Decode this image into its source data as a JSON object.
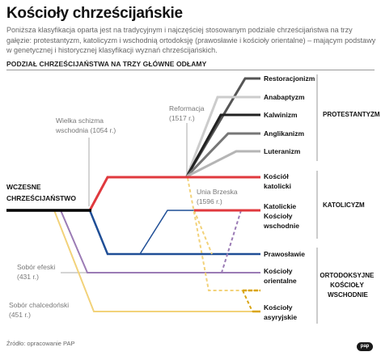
{
  "title": "Kościoły chrześcijańskie",
  "intro": "Poniższa klasyfikacja oparta jest na tradycyjnym i najczęściej stosowanym podziale chrześcijaństwa na trzy gałęzie: protestantyzm, katolicyzm i wschodnią ortodoksję (prawosławie i kościoły orientalne) – mającym podstawy w genetycznej i historycznej klasyfikacji wyznań chrześcijańskich.",
  "subtitle": "PODZIAŁ CHRZEŚCIJAŃSTWA NA TRZY GŁÓWNE ODŁAMY",
  "start": {
    "line1": "WCZESNE",
    "line2": "CHRZEŚCIJAŃSTWO"
  },
  "events": {
    "schism": {
      "line1": "Wielka schizma",
      "line2": "wschodnia (1054 r.)"
    },
    "reformation": {
      "line1": "Reformacja",
      "line2": "(1517 r.)"
    },
    "union": {
      "line1": "Unia Brzeska",
      "line2": "(1596 r.)"
    },
    "ephesus": {
      "line1": "Sobór efeski",
      "line2": "(431 r.)"
    },
    "chalcedon": {
      "line1": "Sobór chalcedoński",
      "line2": "(451 r.)"
    }
  },
  "churches": {
    "restoracjonizm": "Restoracjonizm",
    "anabaptyzm": "Anabaptyzm",
    "kalwinizm": "Kalwinizm",
    "anglikanizm": "Anglikanizm",
    "luteranizm": "Luteranizm",
    "katolicki": {
      "line1": "Kościół",
      "line2": "katolicki"
    },
    "katolickie_wschodnie": {
      "line1": "Katolickie",
      "line2": "Kościoły",
      "line3": "wschodnie"
    },
    "prawoslawie": "Prawosławie",
    "orientalne": {
      "line1": "Kościoły",
      "line2": "orientalne"
    },
    "asyryjskie": {
      "line1": "Kościoły",
      "line2": "asyryjskie"
    }
  },
  "groups": {
    "protestantyzm": "PROTESTANTYZM",
    "katolicyzm": "KATOLICYZM",
    "ortodoksja": {
      "line1": "ORTODOKSYJNE",
      "line2": "KOŚCIOŁY",
      "line3": "WSCHODNIE"
    }
  },
  "source": "Źródło: opracowanie PAP",
  "logo": "pap",
  "colors": {
    "early": "#000000",
    "catholic": "#e0393e",
    "orthodox": "#1f4e96",
    "oriental": "#9b7bb5",
    "assyrian": "#f2d27a",
    "assyrian_dark": "#d9a514",
    "restoracjonizm": "#555555",
    "anabaptyzm": "#cccccc",
    "kalwinizm": "#222222",
    "anglikanizm": "#777777",
    "luteranizm": "#b5b5b5",
    "guide": "#aaaaaa"
  }
}
